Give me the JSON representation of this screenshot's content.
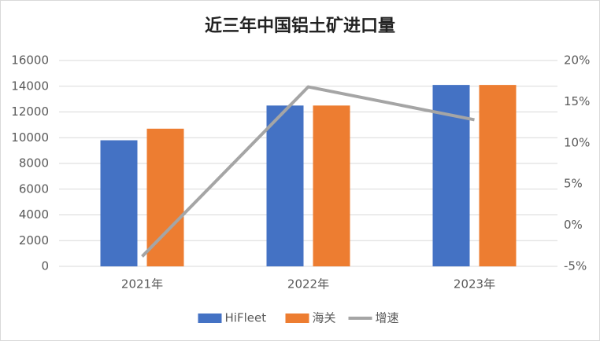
{
  "chart_data": {
    "type": "bar_line",
    "title": "近三年中国铝土矿进口量",
    "categories": [
      "2021年",
      "2022年",
      "2023年"
    ],
    "series": [
      {
        "name": "HiFleet",
        "color": "#4472c4",
        "type": "bar",
        "values": [
          9800,
          12500,
          14100
        ]
      },
      {
        "name": "海关",
        "color": "#ed7d31",
        "type": "bar",
        "values": [
          10700,
          12500,
          14100
        ]
      },
      {
        "name": "增速",
        "color": "#a5a5a5",
        "type": "line",
        "axis": "y2",
        "values": [
          -3.8,
          16.8,
          12.8
        ]
      }
    ],
    "ylim": [
      0,
      16000
    ],
    "yticks": [
      0,
      2000,
      4000,
      6000,
      8000,
      10000,
      12000,
      14000,
      16000
    ],
    "y2lim": [
      -5,
      20
    ],
    "y2ticks": [
      {
        "value": -5,
        "label": "-5%"
      },
      {
        "value": 0,
        "label": "0%"
      },
      {
        "value": 5,
        "label": "5%"
      },
      {
        "value": 10,
        "label": "10%"
      },
      {
        "value": 15,
        "label": "15%"
      },
      {
        "value": 20,
        "label": "20%"
      }
    ],
    "grid": true,
    "legend": "bottom"
  }
}
